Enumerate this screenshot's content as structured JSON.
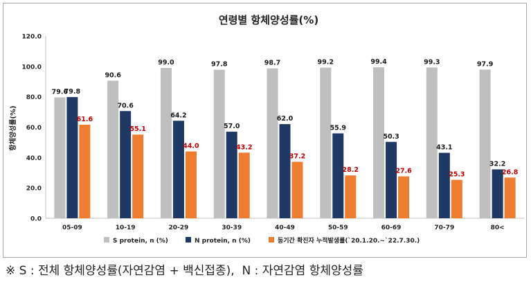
{
  "chart_data": {
    "type": "bar",
    "title": "연령별 항체양성률(%)",
    "ylabel": "항체양성률(%)",
    "xlabel": "",
    "ylim": [
      0,
      120
    ],
    "yticks": [
      "0.0",
      "20.0",
      "40.0",
      "60.0",
      "80.0",
      "100.0",
      "120.0"
    ],
    "categories": [
      "05-09",
      "10-19",
      "20-29",
      "30-39",
      "40-49",
      "50-59",
      "60-69",
      "70-79",
      "80<"
    ],
    "series": [
      {
        "name": "S protein, n (%)",
        "color": "#bfbfbf",
        "label_color": "#1a1a1a",
        "values": [
          79.6,
          90.6,
          99.0,
          97.8,
          98.7,
          99.2,
          99.4,
          99.3,
          97.9
        ]
      },
      {
        "name": "N protein, n (%)",
        "color": "#1f3864",
        "label_color": "#1a1a1a",
        "values": [
          79.8,
          70.6,
          64.2,
          57.0,
          62.0,
          55.9,
          50.3,
          43.1,
          32.2
        ]
      },
      {
        "name": "동기간 확진자 누적발생률(`20.1.20.~`22.7.30.)",
        "color": "#ed7d31",
        "label_color": "#c00000",
        "values": [
          61.6,
          55.1,
          44.0,
          43.2,
          37.2,
          28.2,
          27.6,
          25.3,
          26.8
        ]
      }
    ],
    "legend_position": "bottom",
    "grid": false
  },
  "footnote": "※ S : 전체 항체양성률(자연감염 + 백신접종),  N : 자연감염 항체양성률"
}
